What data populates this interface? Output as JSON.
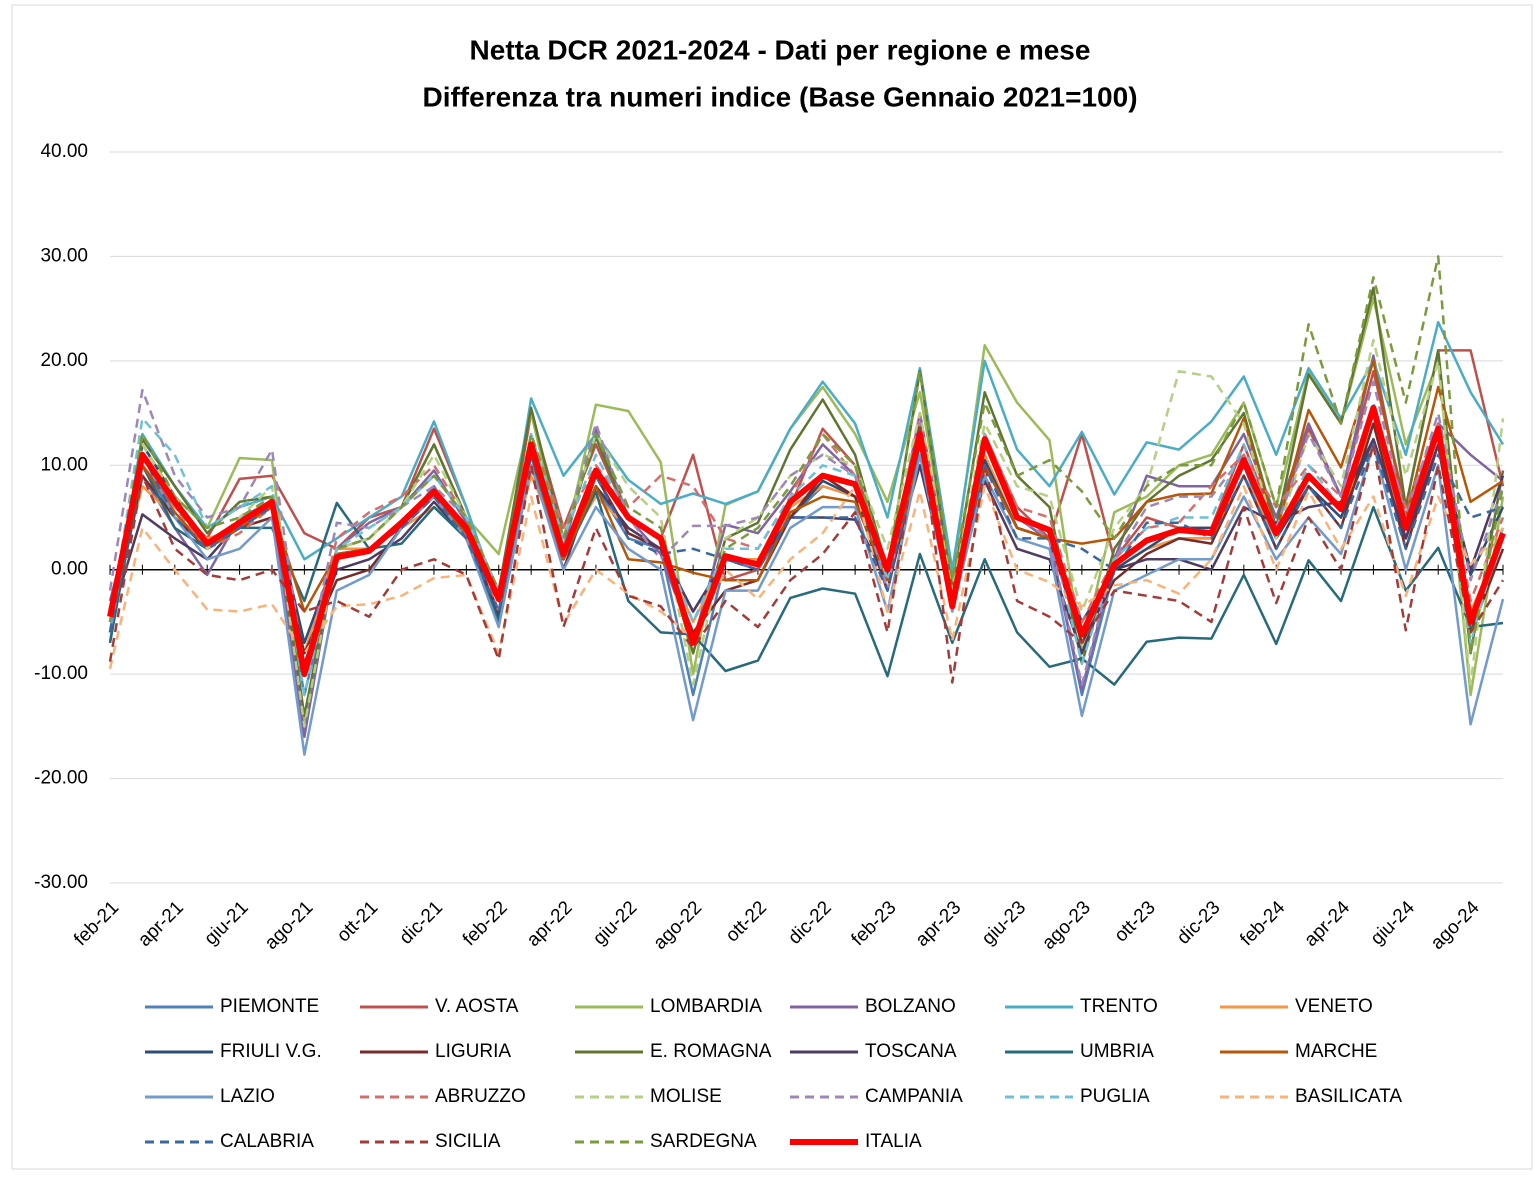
{
  "chart_data": {
    "type": "line",
    "title": "Netta DCR 2021-2024 - Dati per regione e mese",
    "subtitle": "Differenza tra numeri indice (Base Gennaio 2021=100)",
    "categories": [
      "feb-21",
      null,
      "apr-21",
      null,
      "giu-21",
      null,
      "ago-21",
      null,
      "ott-21",
      null,
      "dic-21",
      null,
      "feb-22",
      null,
      "apr-22",
      null,
      "giu-22",
      null,
      "ago-22",
      null,
      "ott-22",
      null,
      "dic-22",
      null,
      "feb-23",
      null,
      "apr-23",
      null,
      "giu-23",
      null,
      "ago-23",
      null,
      "ott-23",
      null,
      "dic-23",
      null,
      "feb-24",
      null,
      "apr-24",
      null,
      "giu-24",
      null,
      "ago-24",
      null
    ],
    "ylim": [
      -30,
      40
    ],
    "yticks": [
      {
        "value": -30,
        "label": "-30.00"
      },
      {
        "value": -20,
        "label": "-20.00"
      },
      {
        "value": -10,
        "label": "-10.00"
      },
      {
        "value": 0,
        "label": "0.00"
      },
      {
        "value": 10,
        "label": "10.00"
      },
      {
        "value": 20,
        "label": "20.00"
      },
      {
        "value": 30,
        "label": "30.00"
      },
      {
        "value": 40,
        "label": "40.00"
      }
    ],
    "grid": true,
    "legend": "bottom",
    "series": [
      {
        "name": "PIEMONTE",
        "color": "#4f81bd",
        "dashed": false,
        "values": [
          -5,
          10,
          5,
          2,
          4,
          6,
          -12,
          1,
          2,
          4,
          8,
          3,
          -5,
          11,
          1,
          8,
          3,
          2,
          -12,
          1,
          0,
          5,
          8,
          7,
          -2,
          14,
          -4,
          11,
          4,
          3,
          -12,
          0,
          2,
          3,
          3,
          10,
          2,
          8,
          5,
          14,
          3,
          12,
          -6,
          3
        ]
      },
      {
        "name": "V. AOSTA",
        "color": "#c0504d",
        "dashed": false,
        "values": [
          -4,
          10,
          6,
          3,
          8.7,
          9,
          3.5,
          2,
          5,
          6,
          13.5,
          6,
          -3,
          15,
          4,
          12,
          5,
          3,
          11,
          -1,
          0,
          6,
          13.5,
          10,
          -1,
          14,
          -3,
          13,
          6,
          3,
          13,
          1,
          5,
          4,
          4,
          12,
          4,
          13.5,
          7,
          19,
          6,
          21,
          21,
          8
        ]
      },
      {
        "name": "LOMBARDIA",
        "color": "#9bbb59",
        "dashed": false,
        "values": [
          -5,
          12,
          7,
          4,
          10.7,
          10.5,
          -15,
          2,
          3,
          6,
          12,
          5,
          1.5,
          15,
          2,
          15.8,
          15.2,
          10.3,
          -10,
          6.2,
          7.5,
          13.5,
          17.5,
          13,
          6.5,
          17,
          -1,
          21.5,
          16,
          12.4,
          -8,
          5.5,
          7,
          10,
          11,
          16,
          6,
          19,
          14,
          26,
          12,
          20,
          -12,
          7
        ]
      },
      {
        "name": "BOLZANO",
        "color": "#8064a2",
        "dashed": false,
        "values": [
          -3,
          9,
          4,
          -0.5,
          5,
          6.5,
          -16,
          2,
          4.5,
          6,
          9.5,
          4.5,
          -3,
          11,
          2,
          13.5,
          5,
          1.5,
          -7,
          4.3,
          3.5,
          7.5,
          12,
          9,
          -1,
          15,
          -2,
          12,
          5,
          2.8,
          -11.5,
          1,
          9,
          8,
          8,
          13,
          5,
          14,
          7,
          20.5,
          5,
          14,
          11,
          8.5
        ]
      },
      {
        "name": "TRENTO",
        "color": "#4bacc6",
        "dashed": false,
        "values": [
          -6,
          13,
          8,
          4,
          6,
          7,
          1,
          3,
          5,
          7,
          14.2,
          6,
          -3,
          16.4,
          9,
          13,
          8.6,
          6.3,
          7.3,
          6.3,
          7.5,
          13.5,
          18,
          14,
          5,
          19.3,
          0,
          20,
          11.5,
          8,
          13.2,
          7.2,
          12.2,
          11.5,
          14.2,
          18.5,
          11,
          19.3,
          14.5,
          20,
          11,
          23.7,
          17,
          12
        ]
      },
      {
        "name": "VENETO",
        "color": "#f79646",
        "dashed": false,
        "values": [
          -4,
          8,
          5,
          3,
          4,
          5,
          -8,
          2,
          2,
          4,
          6,
          4,
          -3,
          9,
          2,
          7,
          4,
          2,
          -5,
          1,
          1,
          6,
          8,
          7,
          -1,
          12,
          -3,
          11,
          4,
          3,
          -5,
          0,
          2,
          3,
          3,
          9,
          3,
          8,
          5,
          14,
          3,
          12,
          -4,
          3
        ]
      },
      {
        "name": "FRIULI V.G.",
        "color": "#2c4d75",
        "dashed": false,
        "values": [
          -7,
          12,
          7,
          2,
          4.5,
          6.5,
          -7,
          1.5,
          2,
          4,
          7.5,
          4,
          -4.5,
          11,
          1,
          9,
          3.5,
          2,
          -4,
          1,
          0.5,
          5,
          8.5,
          7,
          -1,
          12,
          -3,
          10.5,
          4,
          3,
          -5,
          0,
          2,
          4,
          4,
          10,
          3,
          8,
          5,
          12.5,
          3,
          12,
          -0.5,
          6
        ]
      },
      {
        "name": "LIGURIA",
        "color": "#772c2a",
        "dashed": false,
        "values": [
          -6,
          9,
          5,
          2,
          4,
          5,
          -8,
          -1,
          0,
          4,
          7,
          3,
          -4,
          11,
          0,
          9,
          3.5,
          2,
          -6,
          -2,
          -1,
          5,
          9,
          7,
          -2,
          11,
          -3,
          10,
          4,
          3,
          -7,
          -1,
          1.5,
          3,
          2.5,
          9,
          2,
          8,
          4,
          14,
          2,
          12,
          -6,
          2
        ]
      },
      {
        "name": "E. ROMAGNA",
        "color": "#5f7530",
        "dashed": false,
        "values": [
          -6,
          12.5,
          8,
          3.5,
          6.5,
          7,
          -14,
          2,
          3,
          6,
          12,
          5,
          -2,
          15.5,
          3,
          12.7,
          5,
          3,
          -8,
          3,
          4.5,
          11.5,
          16.3,
          11,
          0,
          19,
          -2,
          17,
          9,
          6,
          -9,
          2,
          6.5,
          9,
          10.5,
          15,
          4,
          18.7,
          14,
          27,
          6,
          21,
          -8,
          9.5
        ]
      },
      {
        "name": "TOSCANA",
        "color": "#4d3b62",
        "dashed": false,
        "values": [
          -5,
          5.3,
          3,
          1,
          4.5,
          6,
          -9,
          0,
          1,
          3,
          6.5,
          3,
          -4,
          10,
          1,
          8,
          4,
          2,
          -4,
          1,
          0.5,
          5,
          5,
          4.8,
          -1,
          10,
          -3,
          8.5,
          2,
          1,
          -8,
          0,
          1,
          1,
          0,
          6,
          4.5,
          6,
          6.5,
          12.5,
          3,
          12,
          0,
          9
        ]
      },
      {
        "name": "UMBRIA",
        "color": "#276a7c",
        "dashed": false,
        "values": [
          -7,
          10,
          4,
          2,
          4,
          4,
          -3,
          6.4,
          2,
          2.5,
          6,
          3,
          -5,
          11,
          1,
          7.5,
          -3,
          -6,
          -6.2,
          -9.7,
          -8.7,
          -2.7,
          -1.8,
          -2.3,
          -10.2,
          1.5,
          -7,
          1,
          -6,
          -9.3,
          -8.5,
          -11,
          -6.9,
          -6.5,
          -6.6,
          -0.5,
          -7.1,
          0.9,
          -3,
          6,
          -2,
          2.1,
          -5.5,
          -5.1
        ]
      },
      {
        "name": "MARCHE",
        "color": "#b65708",
        "dashed": false,
        "values": [
          -5,
          10,
          5.5,
          2,
          4,
          6,
          -4,
          1.5,
          2,
          4.5,
          7,
          3.5,
          -3,
          10,
          1,
          8,
          1,
          0.7,
          -0.3,
          -1,
          -1,
          5.5,
          7,
          6.5,
          -1,
          11,
          -2,
          10,
          4,
          3,
          2.5,
          3,
          6.5,
          7.2,
          7.3,
          14.5,
          3.5,
          15.3,
          9.8,
          20,
          5,
          17.5,
          6.5,
          8.5
        ]
      },
      {
        "name": "LAZIO",
        "color": "#729aca",
        "dashed": false,
        "values": [
          -6,
          11,
          5,
          1,
          2,
          5,
          -17.7,
          -2,
          -0.5,
          4,
          7,
          3,
          -5.5,
          10,
          0,
          6,
          2,
          0,
          -14.4,
          -2,
          -2,
          4,
          6,
          6,
          -4,
          11,
          -4,
          9,
          3,
          2,
          -14,
          -2,
          -0.5,
          1,
          1,
          7,
          1,
          5,
          1.5,
          12,
          0,
          10,
          -14.8,
          -2.8
        ]
      },
      {
        "name": "ABRUZZO",
        "color": "#d46e6b",
        "dashed": true,
        "values": [
          -5,
          11,
          6,
          2,
          3.5,
          6,
          -10,
          3,
          5.5,
          7,
          10,
          5,
          -4,
          13,
          4,
          10,
          6,
          9,
          8,
          3,
          2,
          7,
          13,
          9,
          -1,
          15,
          -3,
          13,
          6,
          5,
          -5,
          1,
          4,
          4.5,
          8,
          11,
          6,
          10,
          7,
          15,
          6,
          14,
          -3,
          5
        ]
      },
      {
        "name": "MOLISE",
        "color": "#b5cf85",
        "dashed": true,
        "values": [
          -5,
          12,
          7,
          2,
          5,
          8,
          -15,
          2,
          3,
          6,
          11,
          5,
          -2,
          12,
          3,
          13,
          8,
          5,
          -11,
          3,
          5,
          9,
          11,
          10,
          2,
          15,
          -2,
          14,
          8,
          7,
          -4,
          4,
          8,
          19,
          18.5,
          14,
          3,
          13,
          8,
          22,
          9,
          20,
          -11,
          14.5
        ]
      },
      {
        "name": "CAMPANIA",
        "color": "#9d87b8",
        "dashed": true,
        "values": [
          -2,
          17.2,
          9,
          5,
          6,
          11.5,
          -10,
          4.5,
          4,
          6,
          8,
          5,
          -3,
          12,
          3,
          14,
          5,
          1,
          4.2,
          4.2,
          5,
          9,
          11,
          9,
          -2,
          14,
          -3,
          12,
          5,
          3,
          -11,
          1,
          6,
          7,
          7,
          11,
          4,
          13,
          7,
          18,
          5,
          15,
          -1,
          8
        ]
      },
      {
        "name": "PUGLIA",
        "color": "#6fc0d6",
        "dashed": true,
        "values": [
          -5,
          14.5,
          11,
          4,
          6,
          8,
          -12,
          2,
          4,
          6,
          9,
          5,
          -2,
          13,
          3,
          11,
          5,
          3,
          -5,
          2,
          2,
          7,
          10,
          9,
          -1,
          13,
          -3,
          13,
          5,
          4,
          -9,
          1,
          4,
          5,
          5,
          12,
          3,
          10,
          6,
          16,
          4,
          14,
          -7,
          4
        ]
      },
      {
        "name": "BASILICATA",
        "color": "#f9b27a",
        "dashed": true,
        "values": [
          -9.5,
          4,
          0,
          -3.8,
          -4,
          -3.3,
          -8,
          -3.5,
          -3.3,
          -2.5,
          -0.8,
          -0.5,
          -8,
          7,
          -5.2,
          0,
          -2.3,
          -4,
          -6.5,
          0,
          -2.8,
          1,
          3.5,
          8,
          -4,
          7.5,
          -6.8,
          8,
          0,
          -1.2,
          -3.5,
          -1.5,
          -1,
          -2.3,
          1,
          8,
          0,
          7.5,
          2,
          7,
          -2.5,
          7,
          0.5,
          4
        ]
      },
      {
        "name": "CALABRIA",
        "color": "#3a67a0",
        "dashed": true,
        "values": [
          -6,
          11,
          5,
          2,
          4,
          6,
          -10,
          1,
          2,
          4,
          7,
          3,
          -4,
          11,
          1,
          9,
          3,
          1.5,
          2,
          1,
          0,
          5,
          5,
          5,
          -2,
          12,
          -3,
          10,
          3,
          3,
          2,
          0,
          4.5,
          4.5,
          3,
          9,
          2,
          8,
          4,
          12,
          2,
          11,
          5,
          6
        ]
      },
      {
        "name": "SICILIA",
        "color": "#a33b39",
        "dashed": true,
        "values": [
          -8.8,
          9,
          2,
          -0.5,
          -1,
          0,
          -4,
          -3,
          -4.5,
          0,
          1,
          -0.5,
          -8.6,
          10,
          -5.5,
          4,
          -2.5,
          -3.5,
          -7.5,
          -3,
          -5.5,
          -1,
          1.5,
          5.5,
          -6,
          14,
          -10.8,
          10,
          -3,
          -4.5,
          -7,
          -2,
          -2.5,
          -3,
          -5,
          6,
          -3.2,
          5,
          0,
          12,
          -5.8,
          10,
          -6,
          -1
        ]
      },
      {
        "name": "SARDEGNA",
        "color": "#7a9a3c",
        "dashed": true,
        "values": [
          -5,
          13,
          7,
          4,
          5,
          7,
          -10,
          2,
          3,
          6,
          9,
          5,
          -2,
          13,
          3,
          13,
          6,
          4,
          -7,
          2,
          4,
          8,
          13,
          10,
          0,
          19,
          -1,
          16,
          9,
          10.5,
          7.5,
          3,
          8,
          10,
          10,
          16,
          6,
          23.5,
          14,
          28,
          16,
          30,
          -8,
          8
        ]
      },
      {
        "name": "ITALIA",
        "color": "#ff0000",
        "dashed": false,
        "line_width": 6,
        "values": [
          -4.5,
          11,
          6.5,
          2.5,
          4.5,
          6.5,
          -10,
          1.2,
          1.8,
          4.5,
          7.5,
          4,
          -2.8,
          12,
          1.5,
          9.5,
          5,
          3,
          -7,
          1.3,
          0.5,
          6.5,
          9,
          8.2,
          0,
          13,
          -3.5,
          12.5,
          5,
          3.8,
          -6.2,
          0.5,
          2.8,
          3.8,
          3.5,
          10.5,
          3.5,
          9,
          5.8,
          15.5,
          4,
          13.5,
          -5,
          3.5
        ]
      }
    ]
  }
}
